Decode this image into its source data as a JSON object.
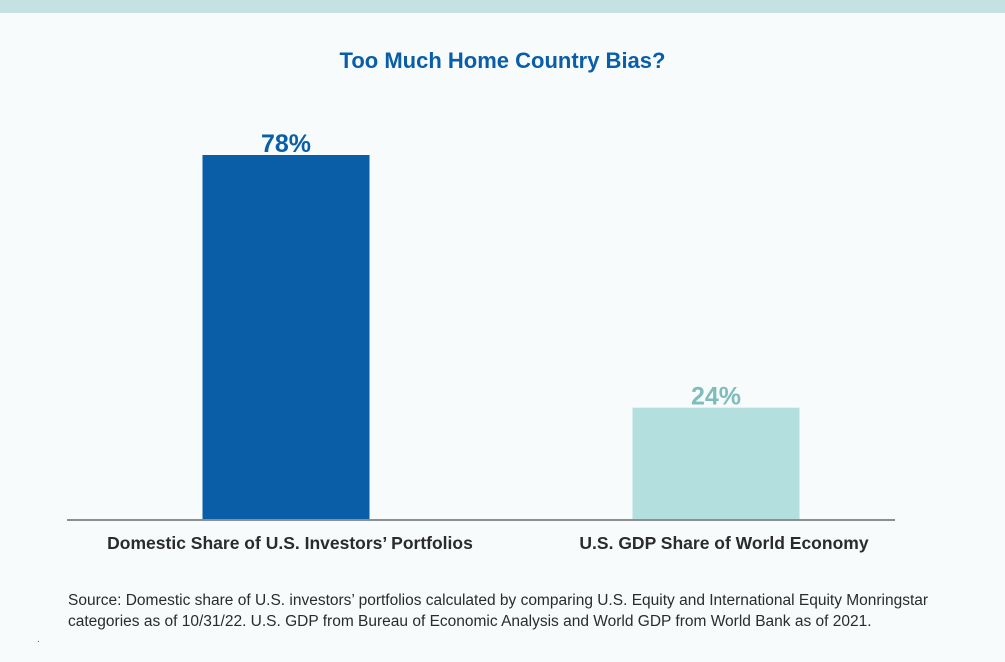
{
  "chart_data": {
    "type": "bar",
    "title": "Too Much Home Country Bias?",
    "categories": [
      "Domestic Share of U.S. Investors’ Portfolios",
      "U.S. GDP Share of World Economy"
    ],
    "values": [
      78,
      24
    ],
    "value_labels": [
      "78%",
      "24%"
    ],
    "colors": [
      "#0a5ea8",
      "#b3dfdf"
    ],
    "label_colors": [
      "#0a5ea8",
      "#7fbdbc"
    ],
    "xlabel": "",
    "ylabel": "",
    "ylim": [
      0,
      100
    ],
    "grid": false,
    "legend": "none"
  },
  "source": "Source: Domestic share of U.S. investors’ portfolios calculated by comparing U.S. Equity and International Equity Monringstar categories as of 10/31/22. U.S. GDP from Bureau of Economic Analysis and World GDP from World Bank as of 2021.",
  "footnote_mark": "."
}
